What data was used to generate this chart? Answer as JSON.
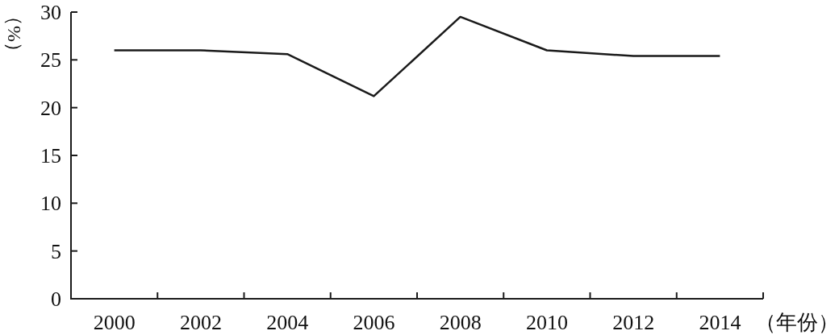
{
  "chart_data": {
    "type": "line",
    "xlabel": "（年份）",
    "ylabel": "（%）",
    "categories": [
      "2000",
      "2002",
      "2004",
      "2006",
      "2008",
      "2010",
      "2012",
      "2014"
    ],
    "values": [
      26,
      26,
      25.6,
      21.2,
      29.5,
      26,
      25.4,
      25.4
    ],
    "color": "#1a1a1a",
    "ylim": [
      0,
      30
    ],
    "yticks": [
      0,
      5,
      10,
      15,
      20,
      25,
      30
    ]
  }
}
